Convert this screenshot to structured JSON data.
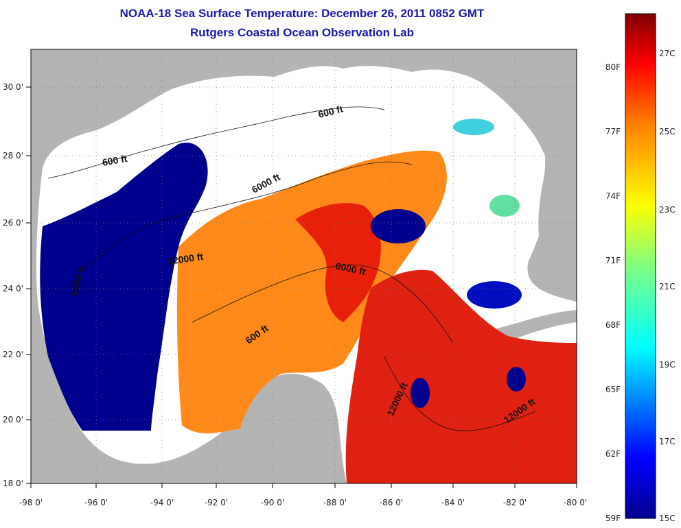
{
  "title": {
    "line1": "NOAA-18 Sea Surface Temperature:  December 26, 2011 0852 GMT",
    "line2": "Rutgers Coastal Ocean Observation Lab"
  },
  "map": {
    "lon_ticks": [
      "-98 0'",
      "-96 0'",
      "-94 0'",
      "-92 0'",
      "-90 0'",
      "-88 0'",
      "-86 0'",
      "-84 0'",
      "-82 0'",
      "-80 0'"
    ],
    "lat_ticks": [
      "30 0'",
      "28 0'",
      "26 0'",
      "24 0'",
      "22 0'",
      "20 0'",
      "18 0'"
    ],
    "contour_labels": [
      "600 ft",
      "600 ft",
      "6000 ft",
      "6000 ft",
      "12000 ft",
      "6000 ft",
      "600 ft",
      "12000 ft",
      "12000 ft"
    ]
  },
  "colorbar": {
    "fahrenheit_labels": [
      "80F",
      "77F",
      "74F",
      "71F",
      "68F",
      "65F",
      "62F",
      "59F"
    ],
    "celsius_labels": [
      "27C",
      "25C",
      "23C",
      "21C",
      "19C",
      "17C",
      "15C"
    ],
    "colors": [
      "#00008f",
      "#0000ff",
      "#0080ff",
      "#00ffff",
      "#80ff80",
      "#ffff00",
      "#ff8000",
      "#ff0000",
      "#800000"
    ]
  }
}
